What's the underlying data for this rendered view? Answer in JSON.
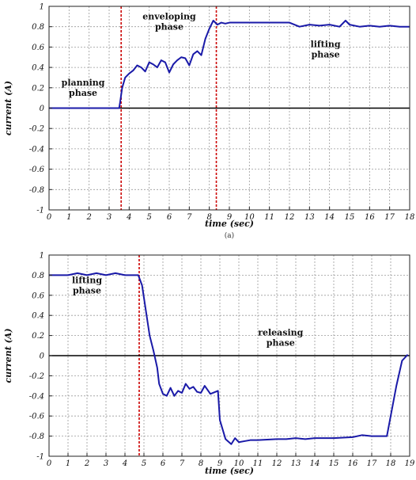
{
  "chart_data": [
    {
      "type": "line",
      "title": "",
      "xlabel": "time (sec)",
      "ylabel": "current (A)",
      "caption": "(a)",
      "xlim": [
        0,
        18
      ],
      "ylim": [
        -1,
        1
      ],
      "xticks": [
        0,
        1,
        2,
        3,
        4,
        5,
        6,
        7,
        8,
        9,
        10,
        11,
        12,
        13,
        14,
        15,
        16,
        17,
        18
      ],
      "yticks": [
        -1,
        -0.8,
        -0.6,
        -0.4,
        -0.2,
        0,
        0.2,
        0.4,
        0.6,
        0.8,
        1
      ],
      "ytick_labels": [
        "-1",
        "-0.8",
        "-0.6",
        "-0.4",
        "-0.2",
        "0",
        "0.2",
        "0.4",
        "0.6",
        "0.8",
        "1"
      ],
      "grid": true,
      "series": [
        {
          "color": "#1a1aa8",
          "x": [
            0,
            1,
            2,
            3,
            3.5,
            3.55,
            3.65,
            3.8,
            4.0,
            4.2,
            4.4,
            4.6,
            4.8,
            5.0,
            5.2,
            5.4,
            5.6,
            5.8,
            6.0,
            6.2,
            6.4,
            6.6,
            6.8,
            7.0,
            7.2,
            7.4,
            7.6,
            7.8,
            8.0,
            8.2,
            8.4,
            8.6,
            8.8,
            9.0,
            9.5,
            10,
            11,
            12,
            12.5,
            13,
            13.5,
            14,
            14.5,
            14.8,
            15,
            15.5,
            16,
            16.5,
            17,
            17.5,
            18
          ],
          "y": [
            0,
            0,
            0,
            0,
            0,
            0.06,
            0.2,
            0.3,
            0.34,
            0.37,
            0.42,
            0.4,
            0.36,
            0.45,
            0.43,
            0.4,
            0.47,
            0.45,
            0.35,
            0.43,
            0.47,
            0.5,
            0.49,
            0.42,
            0.53,
            0.56,
            0.52,
            0.68,
            0.78,
            0.86,
            0.82,
            0.84,
            0.83,
            0.84,
            0.84,
            0.84,
            0.84,
            0.84,
            0.8,
            0.82,
            0.81,
            0.82,
            0.8,
            0.86,
            0.82,
            0.8,
            0.81,
            0.8,
            0.81,
            0.8,
            0.8
          ]
        }
      ],
      "reference_lines": [
        {
          "axis": "x",
          "value": 3.6,
          "color": "#cc0000",
          "style": "dashed"
        },
        {
          "axis": "x",
          "value": 8.35,
          "color": "#cc0000",
          "style": "dashed"
        },
        {
          "axis": "y",
          "value": 0,
          "color": "#000000",
          "style": "solid"
        }
      ],
      "annotations": [
        {
          "text": [
            "planning",
            "phase"
          ],
          "x": 1.7,
          "y": 0.22
        },
        {
          "text": [
            "enveloping",
            "phase"
          ],
          "x": 6.0,
          "y": 0.87
        },
        {
          "text": [
            "lifting",
            "phase"
          ],
          "x": 13.8,
          "y": 0.6
        }
      ]
    },
    {
      "type": "line",
      "title": "",
      "xlabel": "time (sec)",
      "ylabel": "current (A)",
      "xlim": [
        0,
        19
      ],
      "ylim": [
        -1,
        1
      ],
      "xticks": [
        0,
        1,
        2,
        3,
        4,
        5,
        6,
        7,
        8,
        9,
        10,
        11,
        12,
        13,
        14,
        15,
        16,
        17,
        18,
        19
      ],
      "yticks": [
        -1,
        -0.8,
        -0.6,
        -0.4,
        -0.2,
        0,
        0.2,
        0.4,
        0.6,
        0.8,
        1
      ],
      "ytick_labels": [
        "-1",
        "-0.8",
        "-0.6",
        "-0.4",
        "-0.2",
        "0",
        "0.2",
        "0.4",
        "0.6",
        "0.8",
        "1"
      ],
      "grid": true,
      "series": [
        {
          "color": "#1a1aa8",
          "x": [
            0,
            1,
            1.5,
            2,
            2.5,
            3,
            3.5,
            4,
            4.5,
            4.7,
            4.9,
            5.1,
            5.3,
            5.5,
            5.7,
            5.8,
            6.0,
            6.2,
            6.4,
            6.6,
            6.8,
            7.0,
            7.2,
            7.4,
            7.6,
            7.8,
            8.0,
            8.2,
            8.5,
            8.9,
            9.0,
            9.3,
            9.6,
            9.8,
            10,
            10.3,
            10.6,
            11,
            12,
            12.5,
            13,
            13.5,
            14,
            15,
            16,
            16.5,
            17,
            17.5,
            17.8,
            18,
            18.3,
            18.6,
            18.9
          ],
          "y": [
            0.8,
            0.8,
            0.82,
            0.8,
            0.82,
            0.8,
            0.82,
            0.8,
            0.8,
            0.8,
            0.7,
            0.45,
            0.2,
            0.05,
            -0.12,
            -0.28,
            -0.38,
            -0.4,
            -0.32,
            -0.4,
            -0.35,
            -0.37,
            -0.28,
            -0.33,
            -0.31,
            -0.36,
            -0.37,
            -0.3,
            -0.38,
            -0.35,
            -0.64,
            -0.83,
            -0.88,
            -0.82,
            -0.86,
            -0.85,
            -0.84,
            -0.84,
            -0.83,
            -0.83,
            -0.82,
            -0.83,
            -0.82,
            -0.82,
            -0.81,
            -0.79,
            -0.8,
            -0.8,
            -0.8,
            -0.6,
            -0.3,
            -0.05,
            0.01
          ]
        }
      ],
      "reference_lines": [
        {
          "axis": "x",
          "value": 4.75,
          "color": "#cc0000",
          "style": "dashed"
        },
        {
          "axis": "y",
          "value": 0,
          "color": "#000000",
          "style": "solid"
        }
      ],
      "annotations": [
        {
          "text": [
            "lifting",
            "phase"
          ],
          "x": 2.0,
          "y": 0.72
        },
        {
          "text": [
            "releasing",
            "phase"
          ],
          "x": 12.2,
          "y": 0.2
        }
      ]
    }
  ]
}
